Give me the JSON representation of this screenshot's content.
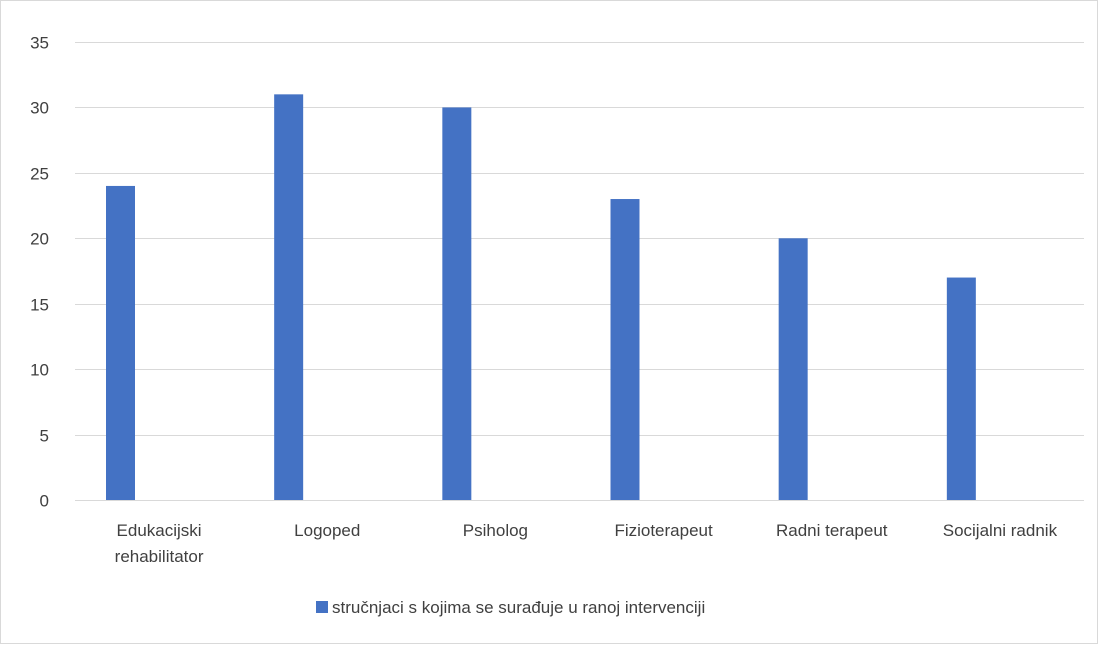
{
  "chart_data": {
    "type": "bar",
    "title": "",
    "xlabel": "",
    "ylabel": "",
    "categories": [
      [
        "Edukacijski",
        "rehabilitator"
      ],
      [
        "Logoped"
      ],
      [
        "Psiholog"
      ],
      [
        "Fizioterapeut"
      ],
      [
        "Radni terapeut"
      ],
      [
        "Socijalni radnik"
      ]
    ],
    "series": [
      {
        "name": "stručnjaci s kojima se surađuje u ranoj intervenciji",
        "values": [
          24,
          31,
          30,
          23,
          20,
          17
        ],
        "color": "#4472c4"
      }
    ],
    "ylim": [
      0,
      35
    ],
    "yticks": [
      0,
      5,
      10,
      15,
      20,
      25,
      30,
      35
    ],
    "grid": true,
    "gridColor": "#d9d9d9",
    "axisLabelColor": "#404040",
    "legend": "bottom"
  }
}
